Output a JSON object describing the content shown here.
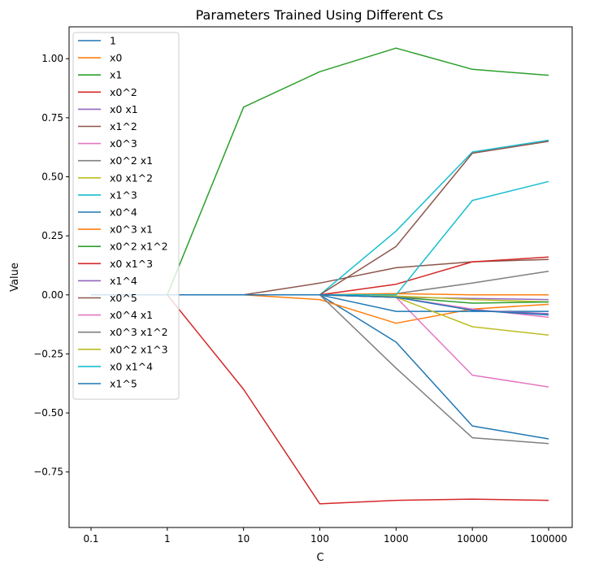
{
  "chart_data": {
    "type": "line",
    "title": "Parameters Trained Using Different Cs",
    "xlabel": "C",
    "ylabel": "Value",
    "x": [
      "0.1",
      "1",
      "10",
      "100",
      "1000",
      "10000",
      "100000"
    ],
    "ylim": [
      -0.985,
      1.135
    ],
    "yticks": [
      -0.75,
      -0.5,
      -0.25,
      0.0,
      0.25,
      0.5,
      0.75,
      1.0
    ],
    "ytick_labels": [
      "−0.75",
      "−0.50",
      "−0.25",
      "0.00",
      "0.25",
      "0.50",
      "0.75",
      "1.00"
    ],
    "grid": false,
    "legend_position": "top-left",
    "series": [
      {
        "name": "1",
        "color": "#1f77b4",
        "values": [
          0,
          0,
          0,
          0,
          -0.2,
          -0.555,
          -0.61
        ]
      },
      {
        "name": "x0",
        "color": "#ff7f0e",
        "values": [
          0,
          0,
          0,
          -0.02,
          -0.12,
          -0.06,
          -0.04
        ]
      },
      {
        "name": "x1",
        "color": "#2ca02c",
        "values": [
          0,
          0,
          0.795,
          0.945,
          1.045,
          0.955,
          0.93
        ]
      },
      {
        "name": "x0^2",
        "color": "#d62728",
        "values": [
          0,
          0,
          -0.4,
          -0.885,
          -0.87,
          -0.865,
          -0.87
        ]
      },
      {
        "name": "x0 x1",
        "color": "#9467bd",
        "values": [
          0,
          0,
          0,
          0,
          -0.01,
          -0.015,
          -0.02
        ]
      },
      {
        "name": "x1^2",
        "color": "#8c564b",
        "values": [
          0,
          0,
          0,
          0.05,
          0.115,
          0.14,
          0.15
        ]
      },
      {
        "name": "x0^3",
        "color": "#e377c2",
        "values": [
          0,
          0,
          0,
          0,
          -0.01,
          -0.34,
          -0.39
        ]
      },
      {
        "name": "x0^2 x1",
        "color": "#7f7f7f",
        "values": [
          0,
          0,
          0,
          0,
          0.005,
          0.05,
          0.1
        ]
      },
      {
        "name": "x0 x1^2",
        "color": "#bcbd22",
        "values": [
          0,
          0,
          0,
          0,
          -0.005,
          -0.02,
          -0.03
        ]
      },
      {
        "name": "x1^3",
        "color": "#17becf",
        "values": [
          0,
          0,
          0,
          0,
          0.27,
          0.605,
          0.655
        ]
      },
      {
        "name": "x0^4",
        "color": "#1f77b4",
        "values": [
          0,
          0,
          0,
          0,
          -0.07,
          -0.07,
          -0.07
        ]
      },
      {
        "name": "x0^3 x1",
        "color": "#ff7f0e",
        "values": [
          0,
          0,
          0,
          0,
          0.005,
          0.0,
          0.0
        ]
      },
      {
        "name": "x0^2 x1^2",
        "color": "#2ca02c",
        "values": [
          0,
          0,
          0,
          0,
          -0.01,
          -0.035,
          -0.03
        ]
      },
      {
        "name": "x0 x1^3",
        "color": "#d62728",
        "values": [
          0,
          0,
          0,
          0,
          0.045,
          0.14,
          0.16
        ]
      },
      {
        "name": "x1^4",
        "color": "#9467bd",
        "values": [
          0,
          0,
          0,
          0,
          -0.01,
          -0.065,
          -0.08
        ]
      },
      {
        "name": "x0^5",
        "color": "#8c564b",
        "values": [
          0,
          0,
          0,
          0,
          0.205,
          0.6,
          0.65
        ]
      },
      {
        "name": "x0^4 x1",
        "color": "#e377c2",
        "values": [
          0,
          0,
          0,
          0,
          -0.01,
          -0.06,
          -0.095
        ]
      },
      {
        "name": "x0^3 x1^2",
        "color": "#7f7f7f",
        "values": [
          0,
          0,
          0,
          0,
          -0.31,
          -0.605,
          -0.63
        ]
      },
      {
        "name": "x0^2 x1^3",
        "color": "#bcbd22",
        "values": [
          0,
          0,
          0,
          0,
          -0.01,
          -0.135,
          -0.17
        ]
      },
      {
        "name": "x0 x1^4",
        "color": "#17becf",
        "values": [
          0,
          0,
          0,
          0,
          0.0,
          0.4,
          0.48
        ]
      },
      {
        "name": "x1^5",
        "color": "#1f77b4",
        "values": [
          0,
          0,
          0,
          0,
          -0.01,
          -0.065,
          -0.085
        ]
      }
    ]
  }
}
